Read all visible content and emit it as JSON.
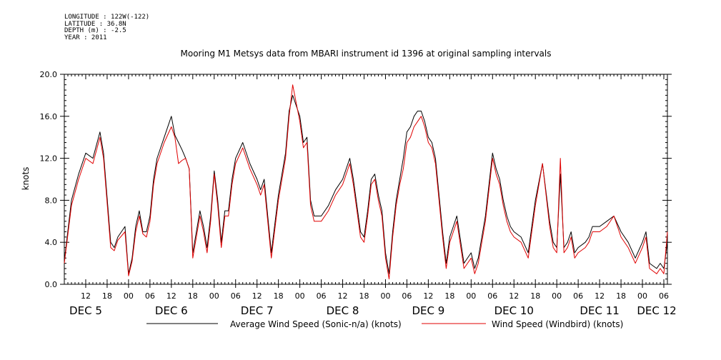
{
  "meta": {
    "longitude": "LONGITUDE : 122W(-122)",
    "latitude": "LATITUDE : 36.8N",
    "depth": "DEPTH (m) : -2.5",
    "year": "YEAR : 2011"
  },
  "chart_data": {
    "type": "line",
    "title": "Mooring M1 Metsys data from MBARI instrument id 1396 at original sampling intervals",
    "ylabel": "knots",
    "xlabel": "",
    "ylim": [
      0,
      20
    ],
    "yticks": [
      0.0,
      4.0,
      8.0,
      12.0,
      16.0,
      20.0
    ],
    "ytick_labels": [
      "0.0",
      "4.0",
      "8.0",
      "12.0",
      "16.0",
      "20.0"
    ],
    "xlim_hours": [
      6,
      175
    ],
    "hour_tick_labels": [
      "12",
      "18",
      "00",
      "06",
      "12",
      "18",
      "00",
      "06",
      "12",
      "18",
      "00",
      "06",
      "12",
      "18",
      "00",
      "06",
      "12",
      "18",
      "00",
      "06",
      "12",
      "18",
      "00",
      "06",
      "12",
      "18",
      "00",
      "06"
    ],
    "day_labels": [
      "DEC  5",
      "DEC  6",
      "DEC  7",
      "DEC  8",
      "DEC  9",
      "DEC 10",
      "DEC 11",
      "DEC 12"
    ],
    "day_label_hours": [
      12,
      36,
      60,
      84,
      108,
      132,
      156,
      172
    ],
    "grid": false,
    "legend_position": "bottom",
    "series": [
      {
        "name": "Average Wind Speed (Sonic-n/a) (knots)",
        "color": "#000000",
        "x": [
          6,
          8,
          10,
          12,
          14,
          16,
          17,
          19,
          20,
          21,
          23,
          24,
          25,
          26,
          27,
          28,
          29,
          30,
          31,
          32,
          34,
          36,
          37,
          38,
          39,
          40,
          41,
          42,
          44,
          45,
          46,
          47,
          48,
          49,
          50,
          51,
          52,
          53,
          54,
          56,
          58,
          60,
          61,
          62,
          64,
          66,
          68,
          69,
          70,
          72,
          73,
          74,
          75,
          76,
          77,
          78,
          80,
          82,
          84,
          86,
          87,
          88,
          89,
          90,
          91,
          92,
          93,
          94,
          95,
          96,
          97,
          98,
          99,
          100,
          101,
          102,
          103,
          104,
          105,
          106,
          107,
          108,
          109,
          110,
          112,
          113,
          114,
          115,
          116,
          118,
          120,
          121,
          122,
          124,
          125,
          126,
          127,
          128,
          129,
          130,
          131,
          132,
          134,
          136,
          138,
          140,
          142,
          143,
          144,
          145,
          146,
          147,
          148,
          149,
          150,
          152,
          153,
          154,
          156,
          158,
          160,
          162,
          164,
          166,
          168,
          169,
          170,
          172,
          173,
          174,
          175
        ],
        "y": [
          2.2,
          8.0,
          10.5,
          12.5,
          12.0,
          14.5,
          12.5,
          4.0,
          3.5,
          4.5,
          5.5,
          1.0,
          2.5,
          5.5,
          7.0,
          5.0,
          5.0,
          6.5,
          10.0,
          12.0,
          14.0,
          16.0,
          14.2,
          13.5,
          12.8,
          12.0,
          11.0,
          3.0,
          7.0,
          5.5,
          3.5,
          6.5,
          10.8,
          8.0,
          4.0,
          7.0,
          7.0,
          10.0,
          12.0,
          13.5,
          11.5,
          10.0,
          9.0,
          10.0,
          3.0,
          8.5,
          12.5,
          16.5,
          18.0,
          16.0,
          13.5,
          14.0,
          8.0,
          6.5,
          6.5,
          6.5,
          7.5,
          9.0,
          10.0,
          12.0,
          10.0,
          7.5,
          5.0,
          4.5,
          7.0,
          10.0,
          10.5,
          8.5,
          7.0,
          3.0,
          1.0,
          5.0,
          8.0,
          10.0,
          12.0,
          14.5,
          15.0,
          16.0,
          16.5,
          16.5,
          15.5,
          14.0,
          13.5,
          12.0,
          5.0,
          2.0,
          4.5,
          5.5,
          6.5,
          2.0,
          3.0,
          1.5,
          2.5,
          6.5,
          9.5,
          12.5,
          11.0,
          10.0,
          8.0,
          6.5,
          5.5,
          5.0,
          4.5,
          3.0,
          8.0,
          11.5,
          6.0,
          4.0,
          3.5,
          10.5,
          3.5,
          4.0,
          5.0,
          3.0,
          3.5,
          4.0,
          4.5,
          5.5,
          5.5,
          6.0,
          6.5,
          5.0,
          4.0,
          2.5,
          4.0,
          5.0,
          2.0,
          1.5,
          2.0,
          1.5,
          4.0
        ]
      },
      {
        "name": "Wind Speed (Windbird) (knots)",
        "color": "#e00000",
        "x": [
          6,
          8,
          10,
          12,
          14,
          16,
          17,
          19,
          20,
          21,
          23,
          24,
          25,
          26,
          27,
          28,
          29,
          30,
          31,
          32,
          34,
          36,
          37,
          38,
          39,
          40,
          41,
          42,
          44,
          45,
          46,
          47,
          48,
          49,
          50,
          51,
          52,
          53,
          54,
          56,
          58,
          60,
          61,
          62,
          64,
          66,
          68,
          69,
          70,
          72,
          73,
          74,
          75,
          76,
          77,
          78,
          80,
          82,
          84,
          86,
          87,
          88,
          89,
          90,
          91,
          92,
          93,
          94,
          95,
          96,
          97,
          98,
          99,
          100,
          101,
          102,
          103,
          104,
          105,
          106,
          107,
          108,
          109,
          110,
          112,
          113,
          114,
          115,
          116,
          118,
          120,
          121,
          122,
          124,
          125,
          126,
          127,
          128,
          129,
          130,
          131,
          132,
          134,
          136,
          138,
          140,
          142,
          143,
          144,
          145,
          146,
          147,
          148,
          149,
          150,
          152,
          153,
          154,
          156,
          158,
          160,
          162,
          164,
          166,
          168,
          169,
          170,
          172,
          173,
          174,
          175
        ],
        "y": [
          2.0,
          7.5,
          10.0,
          12.0,
          11.5,
          14.0,
          12.0,
          3.5,
          3.2,
          4.2,
          5.0,
          0.8,
          2.2,
          5.0,
          6.5,
          4.8,
          4.5,
          6.0,
          9.5,
          11.5,
          13.5,
          15.0,
          14.0,
          11.5,
          11.8,
          12.0,
          11.0,
          2.5,
          6.5,
          5.0,
          3.0,
          6.0,
          10.5,
          7.5,
          3.5,
          6.5,
          6.5,
          9.5,
          11.5,
          13.0,
          11.0,
          9.5,
          8.5,
          9.5,
          2.5,
          8.0,
          12.0,
          16.0,
          19.0,
          15.5,
          13.0,
          13.5,
          7.5,
          6.0,
          6.0,
          6.0,
          7.0,
          8.5,
          9.5,
          11.5,
          9.5,
          7.0,
          4.5,
          4.0,
          6.5,
          9.5,
          10.0,
          8.0,
          6.5,
          2.5,
          0.5,
          4.5,
          7.5,
          9.5,
          11.0,
          13.5,
          14.0,
          15.0,
          15.5,
          16.0,
          15.0,
          13.5,
          13.0,
          11.5,
          4.5,
          1.5,
          4.0,
          5.0,
          6.0,
          1.5,
          2.5,
          1.0,
          2.0,
          6.0,
          9.0,
          12.0,
          10.5,
          9.5,
          7.5,
          6.0,
          5.0,
          4.5,
          4.0,
          2.5,
          7.5,
          11.5,
          5.5,
          3.5,
          3.0,
          12.0,
          3.0,
          3.5,
          4.5,
          2.5,
          3.0,
          3.5,
          4.0,
          5.0,
          5.0,
          5.5,
          6.5,
          4.5,
          3.5,
          2.0,
          3.5,
          4.5,
          1.5,
          1.0,
          1.5,
          1.0,
          5.0
        ]
      }
    ]
  }
}
